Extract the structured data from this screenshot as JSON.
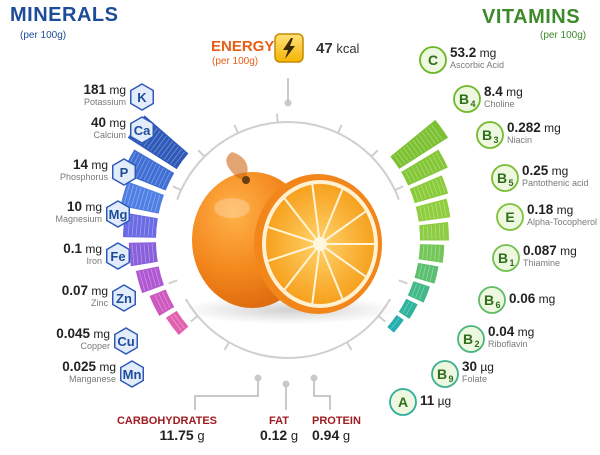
{
  "minerals": {
    "title": "MINERALS",
    "subtitle": "(per 100g)",
    "items": [
      {
        "symbol": "K",
        "amount": "181",
        "unit": "mg",
        "name": "Potassium",
        "fraction": 1.0,
        "color": "#2f59b8"
      },
      {
        "symbol": "Ca",
        "amount": "40",
        "unit": "mg",
        "name": "Calcium",
        "fraction": 0.8,
        "color": "#3f6fd4"
      },
      {
        "symbol": "P",
        "amount": "14",
        "unit": "mg",
        "name": "Phosphorus",
        "fraction": 0.67,
        "color": "#4f7fe4"
      },
      {
        "symbol": "Mg",
        "amount": "10",
        "unit": "mg",
        "name": "Magnesium",
        "fraction": 0.57,
        "color": "#6a6be4"
      },
      {
        "symbol": "Fe",
        "amount": "0.1",
        "unit": "mg",
        "name": "Iron",
        "fraction": 0.47,
        "color": "#8a5fdc"
      },
      {
        "symbol": "Zn",
        "amount": "0.07",
        "unit": "mg",
        "name": "Zinc",
        "fraction": 0.4,
        "color": "#b057d2"
      },
      {
        "symbol": "Cu",
        "amount": "0.045",
        "unit": "mg",
        "name": "Copper",
        "fraction": 0.3,
        "color": "#cd58bf"
      },
      {
        "symbol": "Mn",
        "amount": "0.025",
        "unit": "mg",
        "name": "Manganese",
        "fraction": 0.22,
        "color": "#e160b0"
      }
    ]
  },
  "vitamins": {
    "title": "VITAMINS",
    "subtitle": "(per 100g)",
    "items": [
      {
        "symbol": "C",
        "sub": "",
        "amount": "53.2",
        "unit": "mg",
        "name": "Ascorbic Acid",
        "fraction": 1.0,
        "color": "#7cc132"
      },
      {
        "symbol": "B",
        "sub": "4",
        "amount": "8.4",
        "unit": "mg",
        "name": "Choline",
        "fraction": 0.75,
        "color": "#83c636"
      },
      {
        "symbol": "B",
        "sub": "3",
        "amount": "0.282",
        "unit": "mg",
        "name": "Niacin",
        "fraction": 0.6,
        "color": "#8acb3a"
      },
      {
        "symbol": "B",
        "sub": "5",
        "amount": "0.25",
        "unit": "mg",
        "name": "Pantothenic acid",
        "fraction": 0.55,
        "color": "#8fce3e"
      },
      {
        "symbol": "E",
        "sub": "",
        "amount": "0.18",
        "unit": "mg",
        "name": "Alpha-Tocopherol",
        "fraction": 0.5,
        "color": "#8ccd44"
      },
      {
        "symbol": "B",
        "sub": "1",
        "amount": "0.087",
        "unit": "mg",
        "name": "Thiamine",
        "fraction": 0.42,
        "color": "#74c65a"
      },
      {
        "symbol": "B",
        "sub": "6",
        "amount": "0.06",
        "unit": "mg",
        "name": "",
        "fraction": 0.36,
        "color": "#5cbf70"
      },
      {
        "symbol": "B",
        "sub": "2",
        "amount": "0.04",
        "unit": "mg",
        "name": "Riboflavin",
        "fraction": 0.3,
        "color": "#42b986"
      },
      {
        "symbol": "B",
        "sub": "9",
        "amount": "30",
        "unit": "µg",
        "name": "Folate",
        "fraction": 0.22,
        "color": "#30b39b"
      },
      {
        "symbol": "A",
        "sub": "",
        "amount": "11",
        "unit": "µg",
        "name": "",
        "fraction": 0.15,
        "color": "#26aeb0"
      }
    ]
  },
  "energy": {
    "title": "ENERGY",
    "subtitle": "(per 100g)",
    "amount": "47",
    "unit": "kcal"
  },
  "macros": [
    {
      "name": "CARBOHYDRATES",
      "amount": "11.75",
      "unit": "g"
    },
    {
      "name": "FAT",
      "amount": "0.12",
      "unit": "g"
    },
    {
      "name": "PROTEIN",
      "amount": "0.94",
      "unit": "g"
    }
  ],
  "colors": {
    "minerals": "#1d4c98",
    "vitamins": "#3c8a2a",
    "energy": "#e85e15",
    "macros": "#9e1c22",
    "orange": "#f28a1e"
  }
}
